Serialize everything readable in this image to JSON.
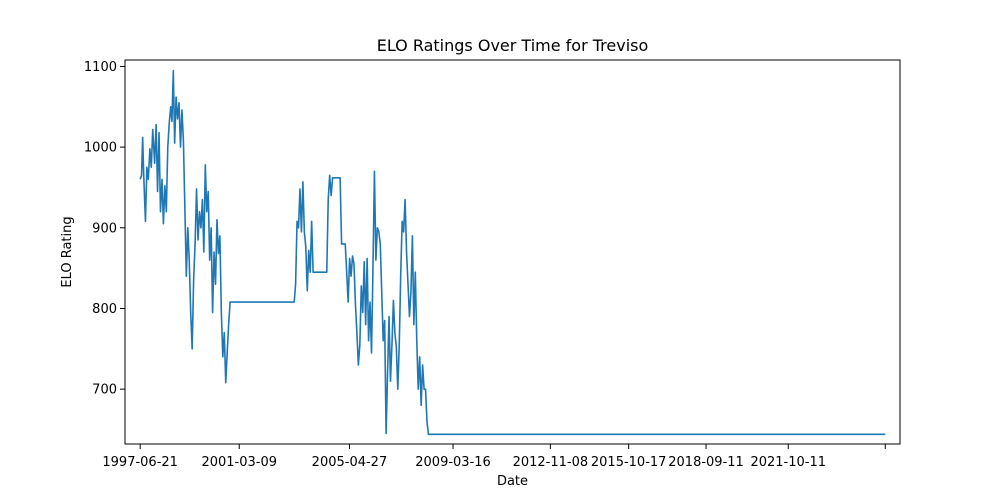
{
  "chart_data": {
    "type": "line",
    "title": "ELO Ratings Over Time for Treviso",
    "xlabel": "Date",
    "ylabel": "ELO Rating",
    "xlim": [
      "1996-11-25",
      "2025-12-20"
    ],
    "ylim": [
      632,
      1108
    ],
    "grid": false,
    "x_ticks": [
      "1997-06-21",
      "2001-03-09",
      "2005-04-27",
      "2009-03-16",
      "2012-11-08",
      "2015-10-17",
      "2018-09-11",
      "2021-10-11",
      ""
    ],
    "x_tick_dates": [
      "1997-06-21",
      "2001-03-09",
      "2005-04-27",
      "2009-03-16",
      "2012-11-08",
      "2015-10-17",
      "2018-09-11",
      "2021-10-11",
      "2025-06-01"
    ],
    "y_ticks": [
      700,
      800,
      900,
      1000,
      1100
    ],
    "series": [
      {
        "name": "Treviso",
        "color": "#1f77b4",
        "points": [
          [
            "1997-06-21",
            960
          ],
          [
            "1997-07-10",
            965
          ],
          [
            "1997-07-25",
            1012
          ],
          [
            "1997-08-08",
            966
          ],
          [
            "1997-09-01",
            908
          ],
          [
            "1997-09-20",
            975
          ],
          [
            "1997-10-10",
            960
          ],
          [
            "1997-11-01",
            998
          ],
          [
            "1997-11-20",
            975
          ],
          [
            "1997-12-10",
            1022
          ],
          [
            "1998-01-05",
            980
          ],
          [
            "1998-01-25",
            1028
          ],
          [
            "1998-02-14",
            945
          ],
          [
            "1998-03-06",
            1018
          ],
          [
            "1998-03-26",
            920
          ],
          [
            "1998-04-16",
            960
          ],
          [
            "1998-05-05",
            905
          ],
          [
            "1998-05-25",
            952
          ],
          [
            "1998-06-14",
            920
          ],
          [
            "1998-07-04",
            1000
          ],
          [
            "1998-07-24",
            1030
          ],
          [
            "1998-08-13",
            1050
          ],
          [
            "1998-08-30",
            1032
          ],
          [
            "1998-09-18",
            1095
          ],
          [
            "1998-10-06",
            1005
          ],
          [
            "1998-10-26",
            1062
          ],
          [
            "1998-11-15",
            1035
          ],
          [
            "1998-12-05",
            1055
          ],
          [
            "1998-12-25",
            1000
          ],
          [
            "1999-01-14",
            1046
          ],
          [
            "1999-02-03",
            1008
          ],
          [
            "1999-02-23",
            925
          ],
          [
            "1999-03-15",
            840
          ],
          [
            "1999-04-04",
            900
          ],
          [
            "1999-04-24",
            860
          ],
          [
            "1999-05-14",
            795
          ],
          [
            "1999-06-03",
            750
          ],
          [
            "1999-06-23",
            835
          ],
          [
            "1999-07-13",
            880
          ],
          [
            "1999-08-02",
            948
          ],
          [
            "1999-08-22",
            885
          ],
          [
            "1999-09-11",
            920
          ],
          [
            "1999-10-01",
            900
          ],
          [
            "1999-10-21",
            935
          ],
          [
            "1999-11-10",
            870
          ],
          [
            "1999-11-30",
            978
          ],
          [
            "1999-12-20",
            920
          ],
          [
            "2000-01-09",
            945
          ],
          [
            "2000-01-29",
            860
          ],
          [
            "2000-02-18",
            900
          ],
          [
            "2000-03-09",
            795
          ],
          [
            "2000-03-29",
            870
          ],
          [
            "2000-04-18",
            830
          ],
          [
            "2000-05-08",
            910
          ],
          [
            "2000-05-28",
            868
          ],
          [
            "2000-06-17",
            890
          ],
          [
            "2000-07-07",
            795
          ],
          [
            "2000-07-27",
            740
          ],
          [
            "2000-08-16",
            770
          ],
          [
            "2000-09-05",
            708
          ],
          [
            "2000-09-25",
            745
          ],
          [
            "2000-10-15",
            780
          ],
          [
            "2000-11-04",
            808
          ],
          [
            "2001-06-01",
            808
          ],
          [
            "2002-01-01",
            808
          ],
          [
            "2002-08-01",
            808
          ],
          [
            "2003-04-01",
            808
          ],
          [
            "2003-04-20",
            830
          ],
          [
            "2003-05-10",
            908
          ],
          [
            "2003-05-30",
            900
          ],
          [
            "2003-06-19",
            948
          ],
          [
            "2003-07-09",
            895
          ],
          [
            "2003-07-29",
            957
          ],
          [
            "2003-08-18",
            895
          ],
          [
            "2003-09-07",
            876
          ],
          [
            "2003-09-27",
            822
          ],
          [
            "2003-10-17",
            872
          ],
          [
            "2003-11-06",
            845
          ],
          [
            "2003-11-26",
            908
          ],
          [
            "2003-12-16",
            845
          ],
          [
            "2004-02-01",
            845
          ],
          [
            "2004-05-01",
            845
          ],
          [
            "2004-06-20",
            845
          ],
          [
            "2004-07-10",
            935
          ],
          [
            "2004-07-30",
            965
          ],
          [
            "2004-08-19",
            940
          ],
          [
            "2004-09-08",
            962
          ],
          [
            "2004-11-01",
            962
          ],
          [
            "2004-12-20",
            962
          ],
          [
            "2005-01-09",
            880
          ],
          [
            "2005-02-28",
            880
          ],
          [
            "2005-03-20",
            845
          ],
          [
            "2005-04-09",
            808
          ],
          [
            "2005-04-29",
            862
          ],
          [
            "2005-05-19",
            840
          ],
          [
            "2005-06-08",
            865
          ],
          [
            "2005-06-28",
            855
          ],
          [
            "2005-07-18",
            805
          ],
          [
            "2005-08-07",
            770
          ],
          [
            "2005-08-27",
            730
          ],
          [
            "2005-09-16",
            755
          ],
          [
            "2005-10-06",
            828
          ],
          [
            "2005-10-26",
            795
          ],
          [
            "2005-11-15",
            858
          ],
          [
            "2005-12-05",
            780
          ],
          [
            "2005-12-25",
            862
          ],
          [
            "2006-01-14",
            760
          ],
          [
            "2006-02-03",
            808
          ],
          [
            "2006-02-23",
            745
          ],
          [
            "2006-03-15",
            850
          ],
          [
            "2006-04-04",
            970
          ],
          [
            "2006-04-24",
            860
          ],
          [
            "2006-05-14",
            900
          ],
          [
            "2006-06-03",
            895
          ],
          [
            "2006-06-23",
            880
          ],
          [
            "2006-07-13",
            820
          ],
          [
            "2006-08-02",
            760
          ],
          [
            "2006-08-22",
            785
          ],
          [
            "2006-09-11",
            645
          ],
          [
            "2006-10-01",
            720
          ],
          [
            "2006-10-21",
            790
          ],
          [
            "2006-11-10",
            710
          ],
          [
            "2006-11-30",
            755
          ],
          [
            "2006-12-20",
            810
          ],
          [
            "2007-01-09",
            770
          ],
          [
            "2007-01-29",
            752
          ],
          [
            "2007-02-18",
            700
          ],
          [
            "2007-03-10",
            755
          ],
          [
            "2007-03-30",
            842
          ],
          [
            "2007-04-19",
            908
          ],
          [
            "2007-05-09",
            895
          ],
          [
            "2007-05-29",
            935
          ],
          [
            "2007-06-18",
            870
          ],
          [
            "2007-07-08",
            830
          ],
          [
            "2007-07-28",
            790
          ],
          [
            "2007-08-17",
            820
          ],
          [
            "2007-09-06",
            890
          ],
          [
            "2007-09-26",
            780
          ],
          [
            "2007-10-16",
            845
          ],
          [
            "2007-11-05",
            760
          ],
          [
            "2007-11-25",
            700
          ],
          [
            "2007-12-15",
            740
          ],
          [
            "2008-01-04",
            680
          ],
          [
            "2008-01-24",
            730
          ],
          [
            "2008-02-13",
            700
          ],
          [
            "2008-03-04",
            700
          ],
          [
            "2008-03-24",
            660
          ],
          [
            "2008-04-13",
            644
          ],
          [
            "2008-05-10",
            644
          ],
          [
            "2009-06-01",
            644
          ],
          [
            "2011-06-01",
            644
          ],
          [
            "2013-06-01",
            644
          ],
          [
            "2015-06-01",
            644
          ],
          [
            "2017-06-01",
            644
          ],
          [
            "2019-06-01",
            644
          ],
          [
            "2021-06-01",
            644
          ],
          [
            "2023-06-01",
            644
          ],
          [
            "2025-06-01",
            644
          ]
        ]
      }
    ]
  }
}
